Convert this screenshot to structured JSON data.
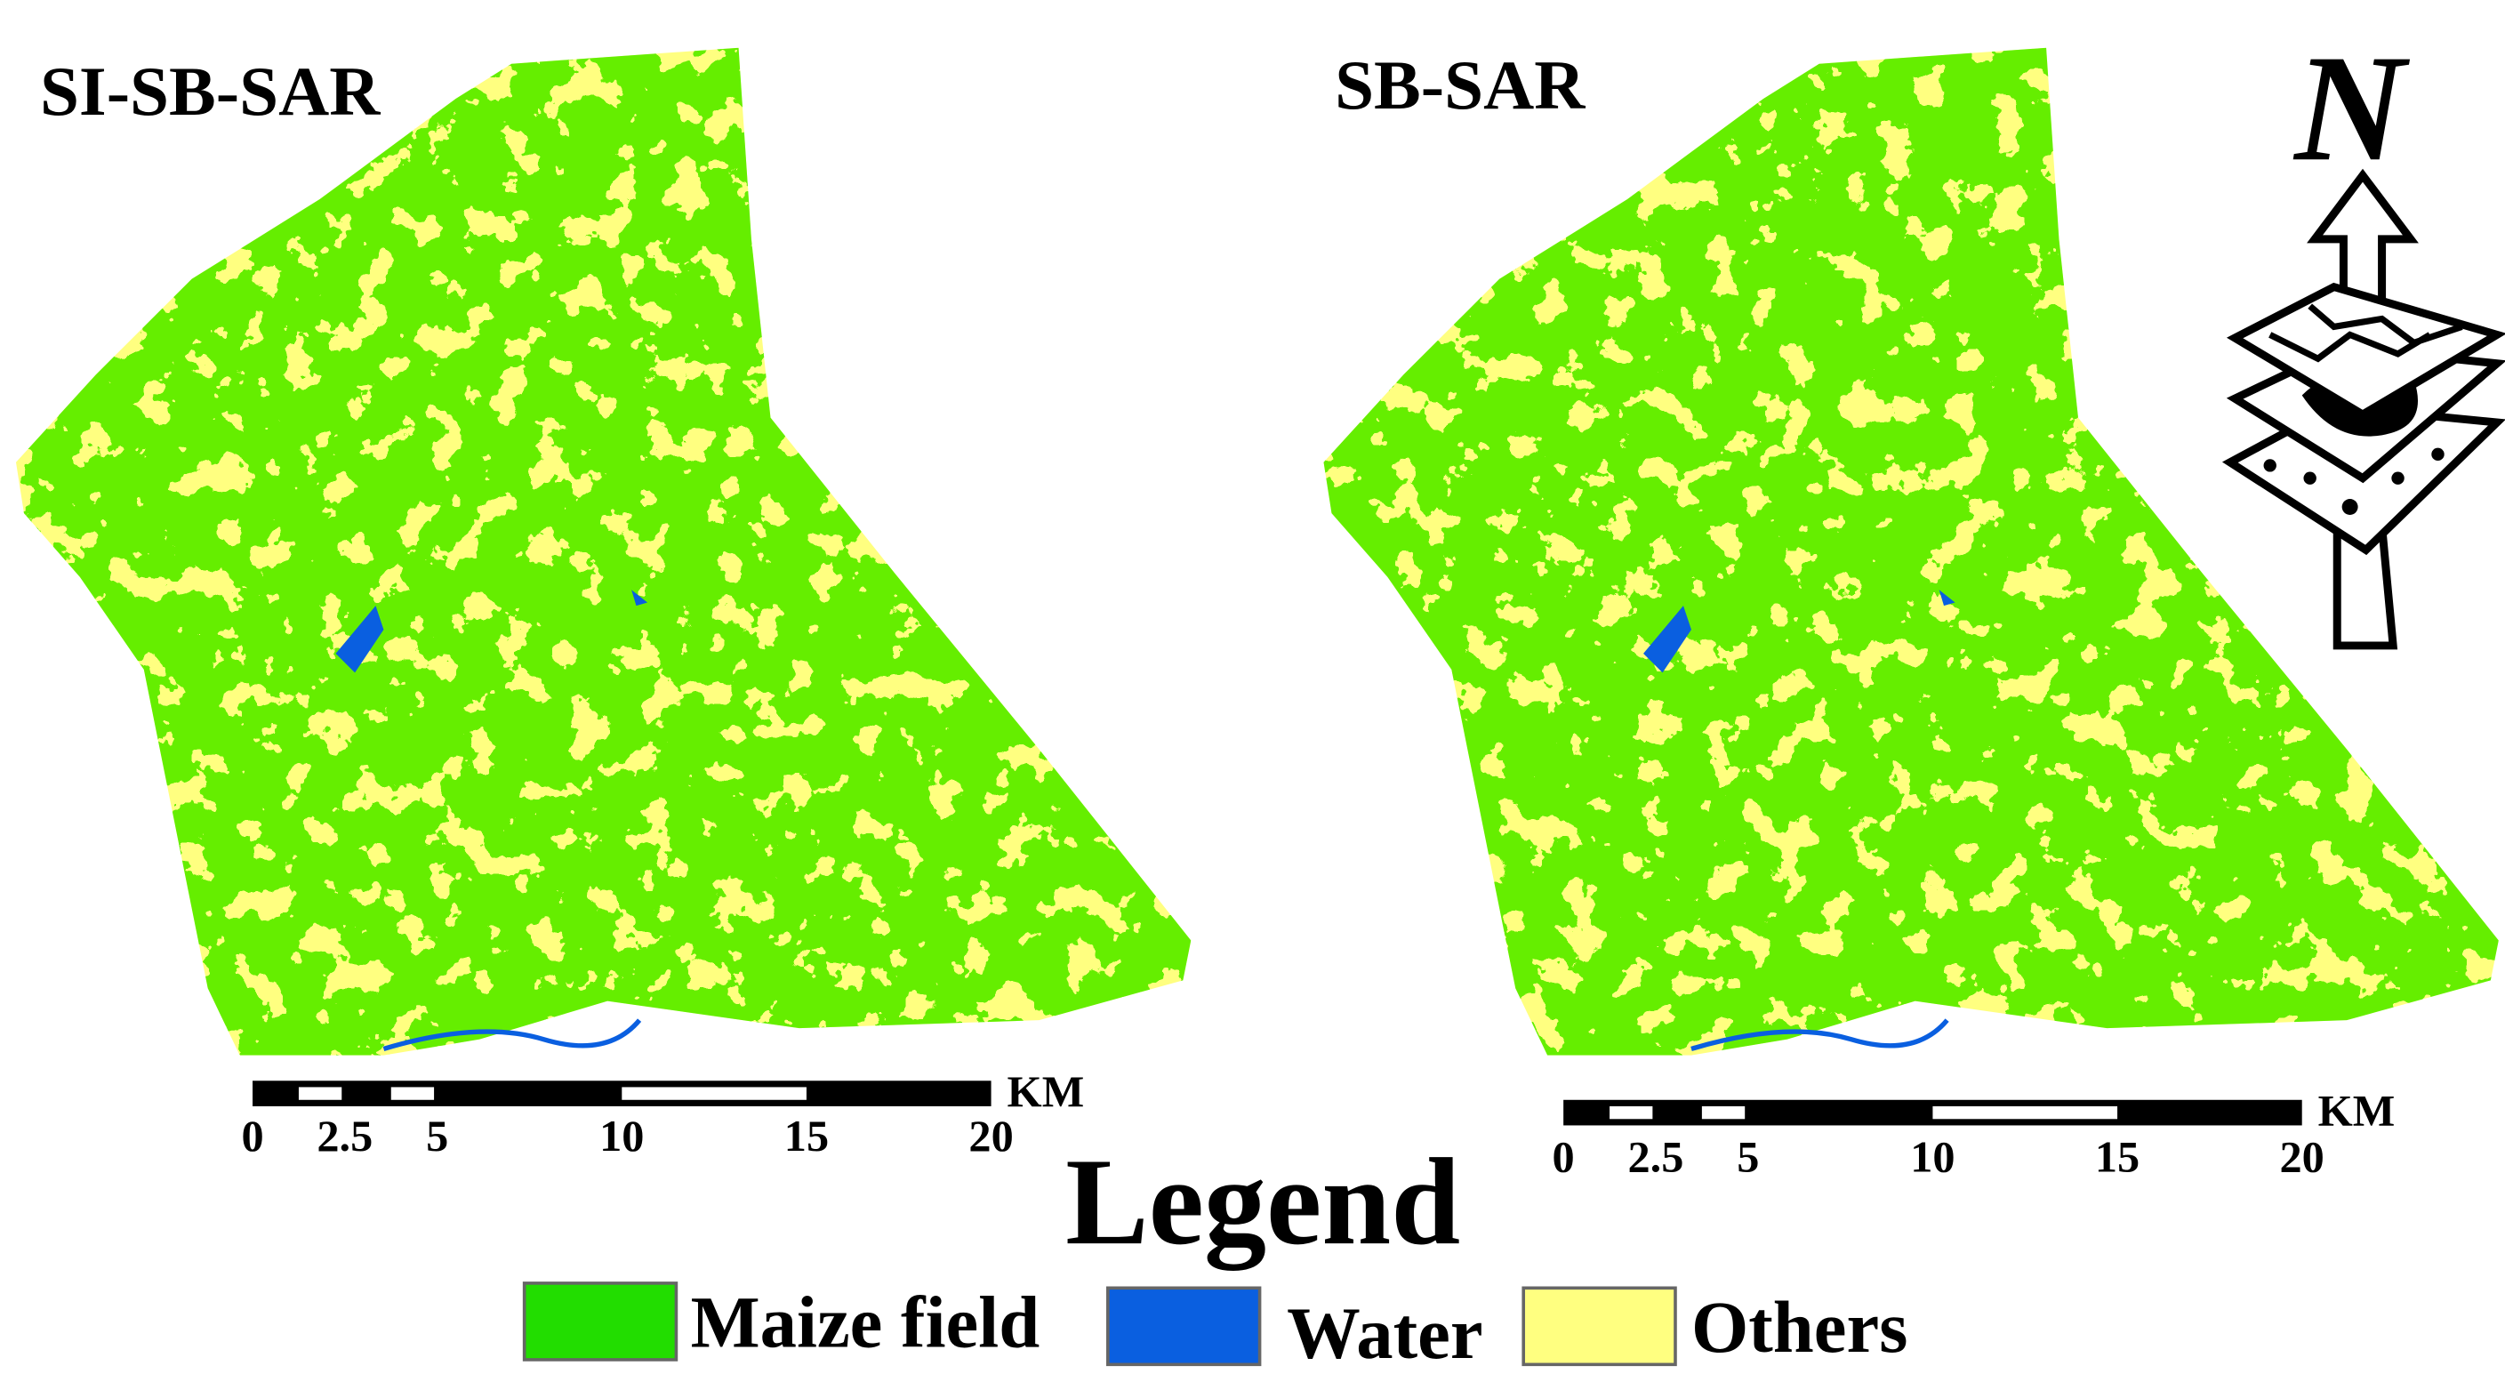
{
  "panels": [
    {
      "title": "SI-SB-SAR"
    },
    {
      "title": "SB-SAR"
    }
  ],
  "scale_bar": {
    "ticks": [
      0,
      2.5,
      5,
      10,
      15,
      20
    ],
    "unit": "KM"
  },
  "north_label": "N",
  "legend": {
    "title": "Legend",
    "items": [
      {
        "label": "Maize field",
        "color": "#22dd00"
      },
      {
        "label": "Water",
        "color": "#0a5fe0"
      },
      {
        "label": "Others",
        "color": "#ffff80"
      }
    ]
  }
}
